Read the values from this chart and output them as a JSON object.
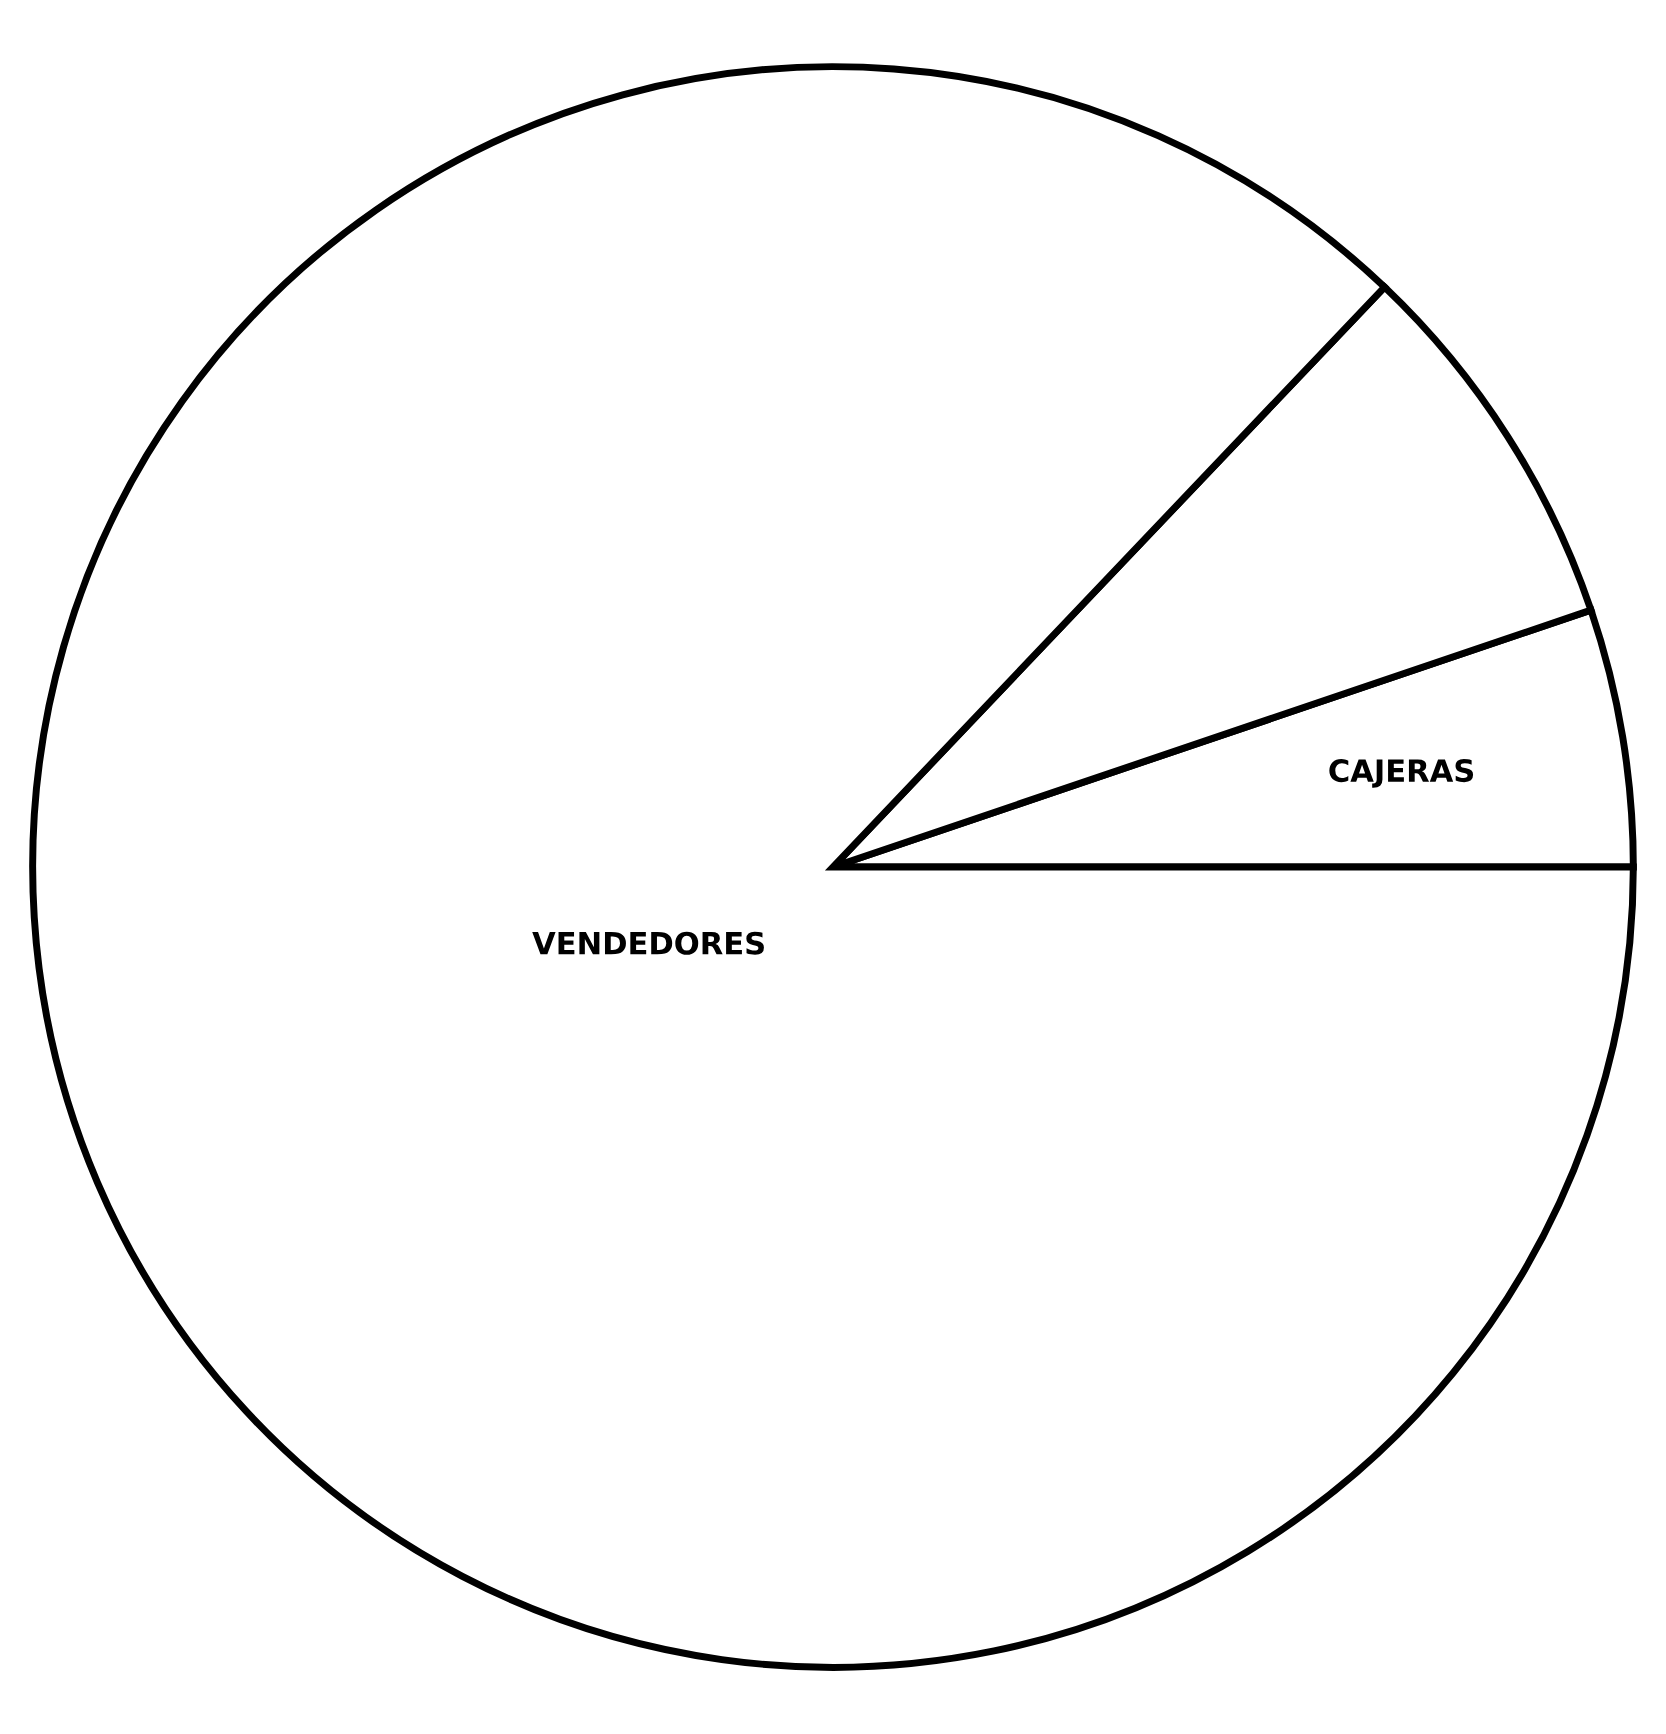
{
  "chart_data": {
    "type": "pie",
    "categories": [
      "CAJERAS",
      null,
      "VENDEDORES"
    ],
    "values": [
      5.2,
      7.7,
      87.1
    ],
    "colors": [
      "#ffffff",
      "#ffffff",
      "#ffffff"
    ]
  }
}
